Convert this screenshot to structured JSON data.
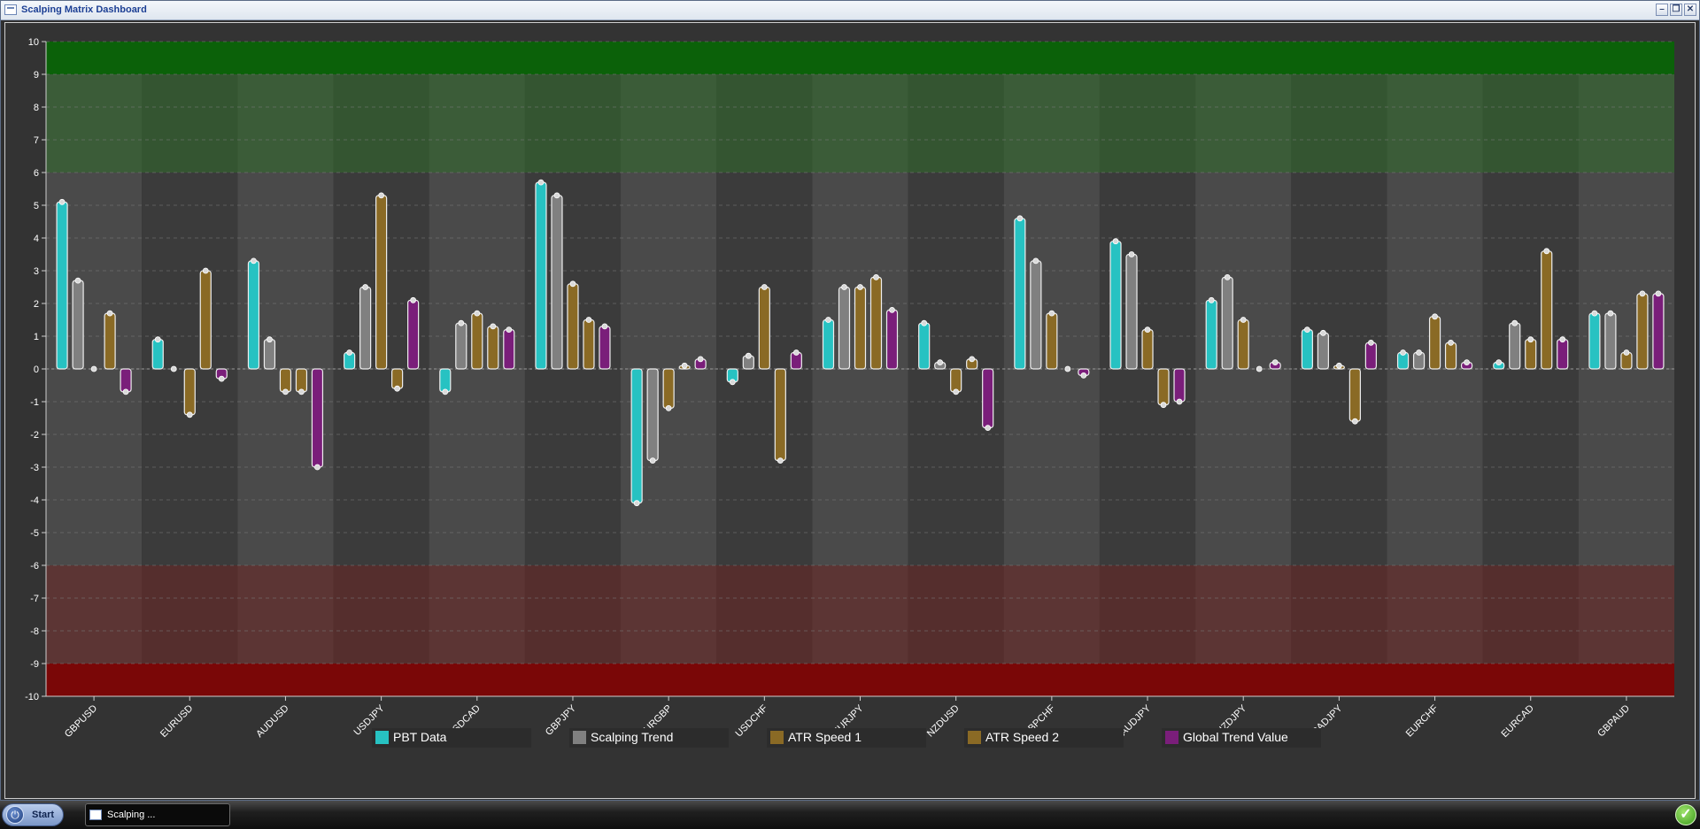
{
  "window": {
    "title": "Scalping Matrix Dashboard",
    "controls": {
      "minimize": "–",
      "restore": "❐",
      "close": "✕"
    }
  },
  "chart_data": {
    "type": "bar",
    "ylim": [
      -10,
      10
    ],
    "yticks": [
      10,
      9,
      8,
      7,
      6,
      5,
      4,
      3,
      2,
      1,
      0,
      -1,
      -2,
      -3,
      -4,
      -5,
      -6,
      -7,
      -8,
      -9,
      -10
    ],
    "grid": true,
    "legend_position": "bottom",
    "zones": [
      {
        "from": 9,
        "to": 10,
        "color": "#0b6109"
      },
      {
        "from": 6,
        "to": 9,
        "color": "#2f6b2a"
      },
      {
        "from": -9,
        "to": -6,
        "color": "#6b2422"
      },
      {
        "from": -10,
        "to": -9,
        "color": "#7a0707"
      }
    ],
    "categories": [
      "GBPUSD",
      "EURUSD",
      "AUDUSD",
      "USDJPY",
      "USDCAD",
      "GBPJPY",
      "EURGBP",
      "USDCHF",
      "EURJPY",
      "NZDUSD",
      "GBPCHF",
      "AUDJPY",
      "NZDJPY",
      "CADJPY",
      "EURCHF",
      "EURCAD",
      "GBPAUD"
    ],
    "series": [
      {
        "name": "PBT Data",
        "color": "#27c2c2",
        "values": [
          5.1,
          0.9,
          3.3,
          0.5,
          -0.7,
          5.7,
          -4.1,
          -0.4,
          1.5,
          1.4,
          4.6,
          3.9,
          2.1,
          1.2,
          0.5,
          0.2,
          1.7
        ]
      },
      {
        "name": "Scalping Trend",
        "color": "#808080",
        "values": [
          2.7,
          0,
          0.9,
          2.5,
          1.4,
          5.3,
          -2.8,
          0.4,
          2.5,
          0.2,
          3.3,
          3.5,
          2.8,
          1.1,
          0.5,
          1.4,
          1.7
        ]
      },
      {
        "name": "ATR Speed 1",
        "color": "#8a6a25",
        "values": [
          0,
          -1.4,
          -0.7,
          5.3,
          1.7,
          2.6,
          -1.2,
          2.5,
          2.5,
          -0.7,
          1.7,
          1.2,
          1.5,
          0.1,
          1.6,
          0.9,
          0.5
        ]
      },
      {
        "name": "ATR Speed 2",
        "color": "#8a6a25",
        "values": [
          1.7,
          3.0,
          -0.7,
          -0.6,
          1.3,
          1.5,
          0.1,
          -2.8,
          2.8,
          0.3,
          0,
          -1.1,
          0,
          -1.6,
          0.8,
          3.6,
          2.3
        ]
      },
      {
        "name": "Global Trend Value",
        "color": "#7a1e7a",
        "values": [
          -0.7,
          -0.3,
          -3.0,
          2.1,
          1.2,
          1.3,
          0.3,
          0.5,
          1.8,
          -1.8,
          -0.2,
          -1.0,
          0.2,
          0.8,
          0.2,
          0.9,
          2.3
        ]
      }
    ]
  },
  "taskbar": {
    "start_label": "Start",
    "task_label": "Scalping ...",
    "start_icon": "power-icon",
    "tray_icon": "check-icon"
  }
}
